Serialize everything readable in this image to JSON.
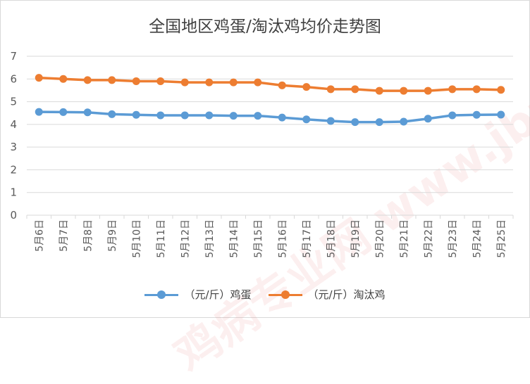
{
  "watermark": "鸡病专业网 www.jbzyw.com",
  "colors": {
    "egg": "#5b9bd5",
    "hen": "#ed7d31",
    "grid": "#d9d9d9",
    "text": "#595959"
  },
  "chart_data": {
    "type": "line",
    "title": "全国地区鸡蛋/淘汰鸡均价走势图",
    "categories": [
      "5月6日",
      "5月7日",
      "5月8日",
      "5月9日",
      "5月10日",
      "5月11日",
      "5月12日",
      "5月13日",
      "5月14日",
      "5月15日",
      "5月16日",
      "5月17日",
      "5月18日",
      "5月19日",
      "5月20日",
      "5月21日",
      "5月22日",
      "5月23日",
      "5月24日",
      "5月25日"
    ],
    "series": [
      {
        "name": "（元/斤）鸡蛋",
        "values": [
          4.55,
          4.54,
          4.53,
          4.45,
          4.42,
          4.4,
          4.4,
          4.4,
          4.38,
          4.38,
          4.3,
          4.22,
          4.15,
          4.1,
          4.1,
          4.12,
          4.25,
          4.4,
          4.42,
          4.43
        ]
      },
      {
        "name": "（元/斤）淘汰鸡",
        "values": [
          6.05,
          6.0,
          5.95,
          5.95,
          5.9,
          5.9,
          5.85,
          5.85,
          5.85,
          5.85,
          5.72,
          5.65,
          5.55,
          5.55,
          5.48,
          5.48,
          5.48,
          5.55,
          5.55,
          5.52
        ]
      }
    ],
    "ylim": [
      0,
      7
    ],
    "yticks": [
      0,
      1,
      2,
      3,
      4,
      5,
      6,
      7
    ],
    "grid": true,
    "legend": "bottom"
  }
}
